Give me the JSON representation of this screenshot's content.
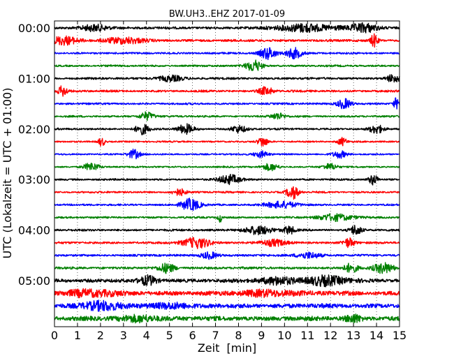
{
  "chart_data": {
    "type": "line",
    "title": "BW.UH3..EHZ 2017-01-09",
    "xlabel": "Zeit  [min]",
    "ylabel": "UTC (Lokalzeit = UTC + 01:00)",
    "xlim": [
      0,
      15
    ],
    "x_ticks": [
      0,
      1,
      2,
      3,
      4,
      5,
      6,
      7,
      8,
      9,
      10,
      11,
      12,
      13,
      14,
      15
    ],
    "x_tick_labels": [
      "0",
      "1",
      "2",
      "3",
      "4",
      "5",
      "6",
      "7",
      "8",
      "9",
      "10",
      "11",
      "12",
      "13",
      "14",
      "15"
    ],
    "y_tick_labels": [
      {
        "row": 0,
        "label": "00:00"
      },
      {
        "row": 4,
        "label": "01:00"
      },
      {
        "row": 8,
        "label": "02:00"
      },
      {
        "row": 12,
        "label": "03:00"
      },
      {
        "row": 16,
        "label": "04:00"
      },
      {
        "row": 20,
        "label": "05:00"
      }
    ],
    "row_interval_min": 15,
    "row_count": 24,
    "colors": [
      "#000000",
      "#ff0000",
      "#0000ff",
      "#008000"
    ],
    "grid": "vertical dotted lines at every minute",
    "traces": [
      {
        "row": 0,
        "start": "00:00",
        "amplitude": 0.45,
        "bursts": [
          {
            "x": 1.8,
            "w": 1.0,
            "a": 1.6
          },
          {
            "x": 11.0,
            "w": 2.5,
            "a": 1.7
          },
          {
            "x": 13.5,
            "w": 1.0,
            "a": 1.8
          }
        ]
      },
      {
        "row": 1,
        "start": "00:15",
        "amplitude": 0.45,
        "bursts": [
          {
            "x": 0.5,
            "w": 1.2,
            "a": 1.6
          },
          {
            "x": 3.0,
            "w": 1.5,
            "a": 1.4
          },
          {
            "x": 13.9,
            "w": 0.2,
            "a": 2.4
          }
        ]
      },
      {
        "row": 2,
        "start": "00:30",
        "amplitude": 0.35,
        "bursts": [
          {
            "x": 9.3,
            "w": 0.6,
            "a": 2.4
          },
          {
            "x": 10.4,
            "w": 0.6,
            "a": 2.6
          }
        ]
      },
      {
        "row": 3,
        "start": "00:45",
        "amplitude": 0.35,
        "bursts": [
          {
            "x": 8.7,
            "w": 0.6,
            "a": 2.4
          }
        ]
      },
      {
        "row": 4,
        "start": "01:00",
        "amplitude": 0.4,
        "bursts": [
          {
            "x": 5.0,
            "w": 1.0,
            "a": 1.3
          },
          {
            "x": 14.7,
            "w": 0.5,
            "a": 1.7
          }
        ]
      },
      {
        "row": 5,
        "start": "01:15",
        "amplitude": 0.4,
        "bursts": [
          {
            "x": 0.35,
            "w": 0.3,
            "a": 2.2
          },
          {
            "x": 9.2,
            "w": 0.5,
            "a": 2.0
          }
        ]
      },
      {
        "row": 6,
        "start": "01:30",
        "amplitude": 0.35,
        "bursts": [
          {
            "x": 12.6,
            "w": 0.5,
            "a": 2.6
          },
          {
            "x": 14.85,
            "w": 0.15,
            "a": 2.2
          }
        ]
      },
      {
        "row": 7,
        "start": "01:45",
        "amplitude": 0.35,
        "bursts": [
          {
            "x": 4.0,
            "w": 0.5,
            "a": 2.0
          },
          {
            "x": 9.7,
            "w": 0.5,
            "a": 1.4
          }
        ]
      },
      {
        "row": 8,
        "start": "02:00",
        "amplitude": 0.35,
        "bursts": [
          {
            "x": 3.8,
            "w": 0.5,
            "a": 2.0
          },
          {
            "x": 5.7,
            "w": 0.6,
            "a": 1.8
          },
          {
            "x": 8.0,
            "w": 0.6,
            "a": 1.4
          },
          {
            "x": 14.0,
            "w": 0.5,
            "a": 1.5
          }
        ]
      },
      {
        "row": 9,
        "start": "02:15",
        "amplitude": 0.3,
        "bursts": [
          {
            "x": 2.05,
            "w": 0.2,
            "a": 2.2
          },
          {
            "x": 9.05,
            "w": 0.3,
            "a": 1.8
          },
          {
            "x": 12.5,
            "w": 0.3,
            "a": 1.6
          }
        ]
      },
      {
        "row": 10,
        "start": "02:30",
        "amplitude": 0.3,
        "bursts": [
          {
            "x": 3.45,
            "w": 0.4,
            "a": 2.0
          },
          {
            "x": 9.0,
            "w": 0.5,
            "a": 1.3
          },
          {
            "x": 12.4,
            "w": 0.5,
            "a": 1.3
          }
        ]
      },
      {
        "row": 11,
        "start": "02:45",
        "amplitude": 0.3,
        "bursts": [
          {
            "x": 1.6,
            "w": 0.6,
            "a": 1.6
          },
          {
            "x": 9.4,
            "w": 0.6,
            "a": 1.4
          },
          {
            "x": 12.0,
            "w": 0.5,
            "a": 1.3
          }
        ]
      },
      {
        "row": 12,
        "start": "03:00",
        "amplitude": 0.35,
        "bursts": [
          {
            "x": 7.6,
            "w": 0.8,
            "a": 2.0
          },
          {
            "x": 13.85,
            "w": 0.3,
            "a": 2.4
          }
        ]
      },
      {
        "row": 13,
        "start": "03:15",
        "amplitude": 0.35,
        "bursts": [
          {
            "x": 10.35,
            "w": 0.4,
            "a": 3.0
          },
          {
            "x": 5.4,
            "w": 0.5,
            "a": 1.4
          }
        ]
      },
      {
        "row": 14,
        "start": "03:30",
        "amplitude": 0.35,
        "bursts": [
          {
            "x": 5.9,
            "w": 0.7,
            "a": 2.6
          },
          {
            "x": 9.8,
            "w": 1.2,
            "a": 1.5
          }
        ]
      },
      {
        "row": 15,
        "start": "03:45",
        "amplitude": 0.35,
        "bursts": [
          {
            "x": 7.2,
            "w": 0.1,
            "a": 2.0
          },
          {
            "x": 12.3,
            "w": 1.5,
            "a": 1.5
          }
        ]
      },
      {
        "row": 16,
        "start": "04:00",
        "amplitude": 0.4,
        "bursts": [
          {
            "x": 8.8,
            "w": 1.2,
            "a": 1.6
          },
          {
            "x": 10.2,
            "w": 0.4,
            "a": 1.6
          },
          {
            "x": 13.1,
            "w": 0.4,
            "a": 2.0
          }
        ]
      },
      {
        "row": 17,
        "start": "04:15",
        "amplitude": 0.4,
        "bursts": [
          {
            "x": 6.2,
            "w": 1.2,
            "a": 2.0
          },
          {
            "x": 12.8,
            "w": 0.4,
            "a": 2.0
          },
          {
            "x": 9.5,
            "w": 1.0,
            "a": 1.3
          }
        ]
      },
      {
        "row": 18,
        "start": "04:30",
        "amplitude": 0.4,
        "bursts": [
          {
            "x": 6.7,
            "w": 0.6,
            "a": 1.7
          },
          {
            "x": 11.0,
            "w": 1.0,
            "a": 1.3
          }
        ]
      },
      {
        "row": 19,
        "start": "04:45",
        "amplitude": 0.45,
        "bursts": [
          {
            "x": 4.9,
            "w": 0.6,
            "a": 1.8
          },
          {
            "x": 12.9,
            "w": 0.5,
            "a": 1.6
          },
          {
            "x": 14.3,
            "w": 0.8,
            "a": 2.0
          }
        ]
      },
      {
        "row": 20,
        "start": "05:00",
        "amplitude": 0.7,
        "bursts": [
          {
            "x": 4.1,
            "w": 0.6,
            "a": 1.6
          },
          {
            "x": 9.8,
            "w": 1.6,
            "a": 1.4
          },
          {
            "x": 11.8,
            "w": 1.8,
            "a": 1.6
          }
        ]
      },
      {
        "row": 21,
        "start": "05:15",
        "amplitude": 0.85,
        "bursts": [
          {
            "x": 1.5,
            "w": 2.0,
            "a": 1.3
          },
          {
            "x": 9.4,
            "w": 2.0,
            "a": 1.2
          }
        ]
      },
      {
        "row": 22,
        "start": "05:30",
        "amplitude": 0.85,
        "bursts": [
          {
            "x": 2.0,
            "w": 2.0,
            "a": 1.3
          },
          {
            "x": 5.0,
            "w": 1.2,
            "a": 1.3
          }
        ]
      },
      {
        "row": 23,
        "start": "05:45",
        "amplitude": 0.85,
        "bursts": [
          {
            "x": 3.8,
            "w": 1.4,
            "a": 1.3
          },
          {
            "x": 13.0,
            "w": 0.6,
            "a": 1.5
          }
        ]
      }
    ]
  }
}
